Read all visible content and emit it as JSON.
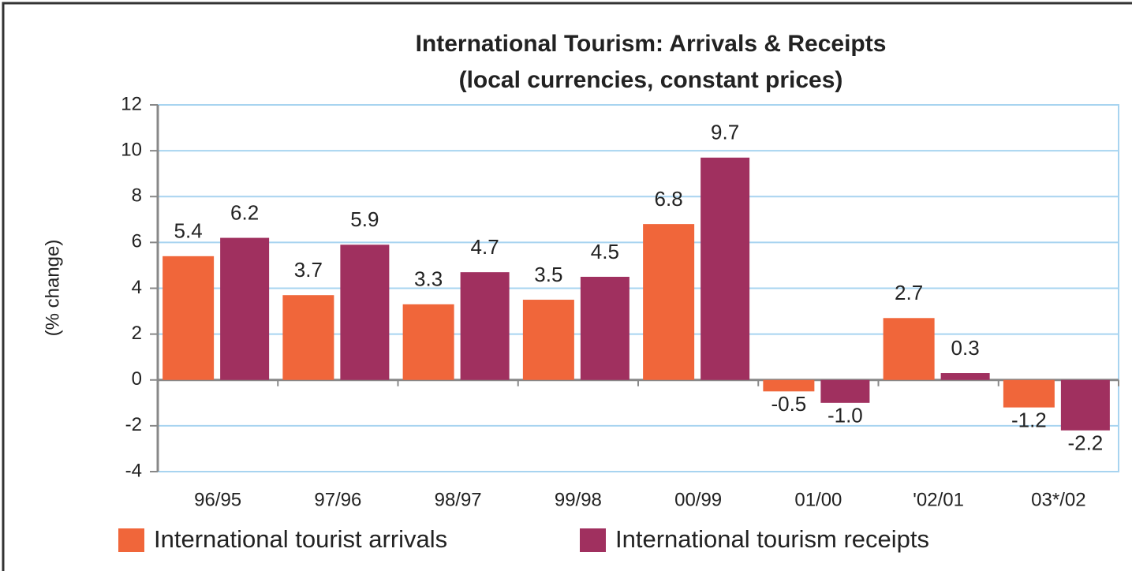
{
  "chart_data": {
    "type": "bar",
    "title": "International Tourism: Arrivals &  Receipts",
    "subtitle": "(local currencies, constant prices)",
    "y_label": "(% change)",
    "categories": [
      "96/95",
      "97/96",
      "98/97",
      "99/98",
      "00/99",
      "01/00",
      "'02/01",
      "03*/02"
    ],
    "series": [
      {
        "name": "International tourist arrivals",
        "color": "#f0663a",
        "values": [
          5.4,
          3.7,
          3.3,
          3.5,
          6.8,
          -0.5,
          2.7,
          -1.2
        ],
        "value_labels": [
          "5.4",
          "3.7",
          "3.3",
          "3.5",
          "6.8",
          "-0.5",
          "2.7",
          "-1.2"
        ]
      },
      {
        "name": "International tourism receipts",
        "color": "#a0305f",
        "values": [
          6.2,
          5.9,
          4.7,
          4.5,
          9.7,
          -1.0,
          0.3,
          -2.2
        ],
        "value_labels": [
          "6.2",
          "5.9",
          "4.7",
          "4.5",
          "9.7",
          "-1.0",
          "0.3",
          "-2.2"
        ]
      }
    ],
    "ylim": [
      -4,
      12
    ],
    "yticks": [
      -4,
      -2,
      0,
      2,
      4,
      6,
      8,
      10,
      12
    ],
    "grid": true,
    "legend": "bottom"
  }
}
